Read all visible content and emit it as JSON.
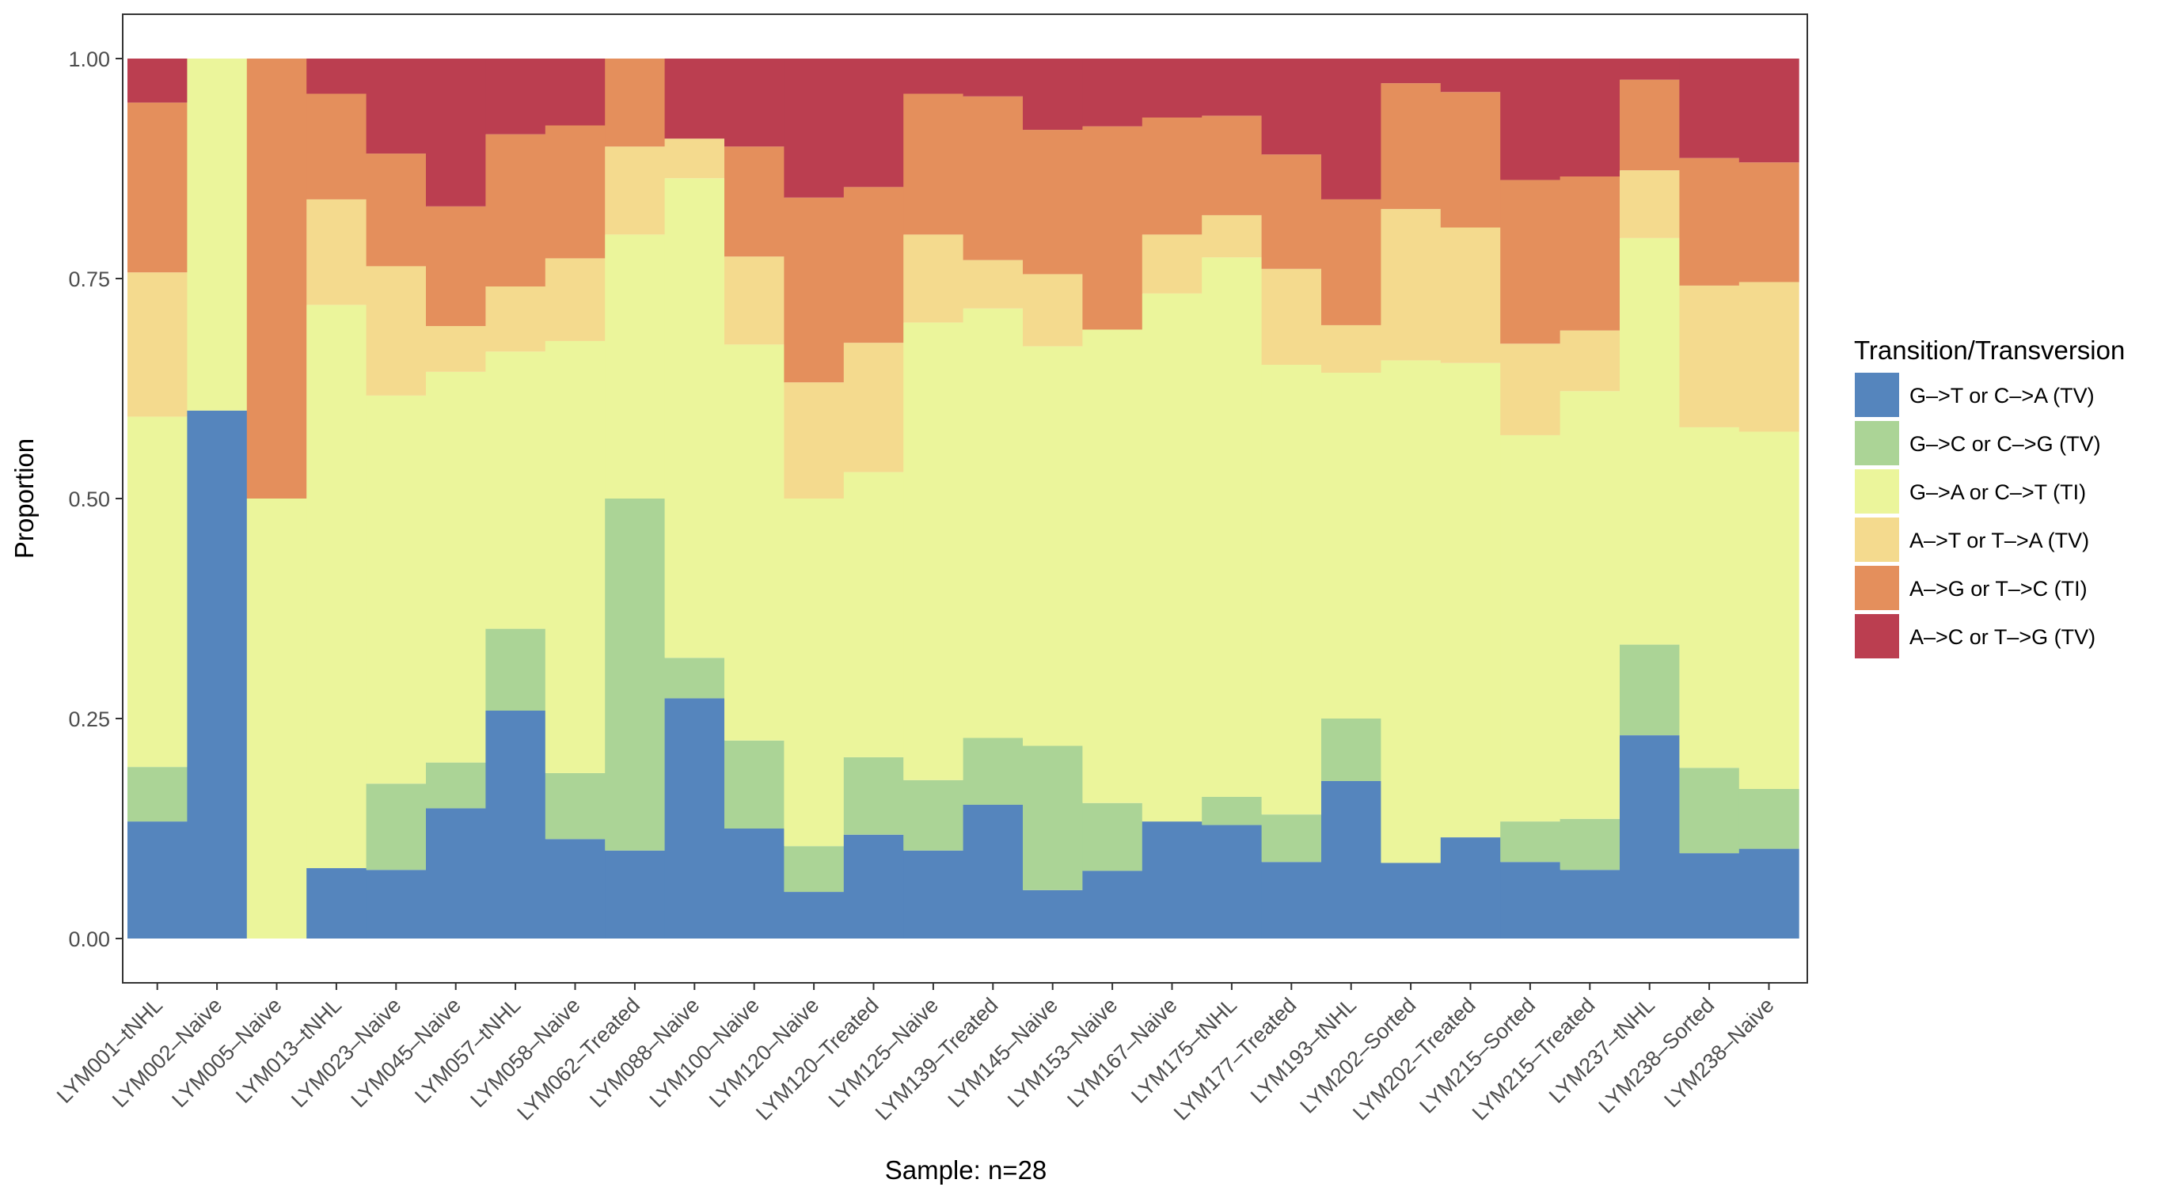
{
  "chart_data": {
    "type": "bar",
    "stacked": true,
    "normalized": true,
    "xlabel": "Sample: n=28",
    "ylabel": "Proportion",
    "ylim": [
      0,
      1
    ],
    "yticks": [
      "0.00",
      "0.25",
      "0.50",
      "0.75",
      "1.00"
    ],
    "grid": false,
    "legend_position": "right",
    "legend_title": "Transition/Transversion",
    "categories": [
      "LYM001–tNHL",
      "LYM002–Naive",
      "LYM005–Naive",
      "LYM013–tNHL",
      "LYM023–Naive",
      "LYM045–Naive",
      "LYM057–tNHL",
      "LYM058–Naive",
      "LYM062–Treated",
      "LYM088–Naive",
      "LYM100–Naive",
      "LYM120–Naive",
      "LYM120–Treated",
      "LYM125–Naive",
      "LYM139–Treated",
      "LYM145–Naive",
      "LYM153–Naive",
      "LYM167–Naive",
      "LYM175–tNHL",
      "LYM177–Treated",
      "LYM193–tNHL",
      "LYM202–Sorted",
      "LYM202–Treated",
      "LYM215–Sorted",
      "LYM215–Treated",
      "LYM237–tNHL",
      "LYM238–Sorted",
      "LYM238–Naive"
    ],
    "series": [
      {
        "name": "G–>T or C–>A (TV)",
        "color": "#5585bd",
        "values": [
          0.133,
          0.6,
          0.0,
          0.08,
          0.078,
          0.148,
          0.259,
          0.113,
          0.1,
          0.273,
          0.125,
          0.053,
          0.118,
          0.1,
          0.152,
          0.055,
          0.077,
          0.133,
          0.129,
          0.087,
          0.179,
          0.086,
          0.115,
          0.087,
          0.078,
          0.231,
          0.097,
          0.102
        ]
      },
      {
        "name": "G–>C or C–>G (TV)",
        "color": "#abd496",
        "values": [
          0.062,
          0.0,
          0.0,
          0.0,
          0.098,
          0.052,
          0.093,
          0.075,
          0.4,
          0.046,
          0.1,
          0.052,
          0.088,
          0.08,
          0.076,
          0.164,
          0.077,
          0.0,
          0.032,
          0.054,
          0.071,
          0.0,
          0.0,
          0.046,
          0.058,
          0.103,
          0.097,
          0.068
        ]
      },
      {
        "name": "G–>A or C–>T (TI)",
        "color": "#ebf59b",
        "values": [
          0.398,
          0.4,
          0.5,
          0.64,
          0.441,
          0.444,
          0.315,
          0.491,
          0.3,
          0.545,
          0.45,
          0.395,
          0.324,
          0.52,
          0.488,
          0.454,
          0.538,
          0.6,
          0.613,
          0.511,
          0.393,
          0.571,
          0.539,
          0.439,
          0.486,
          0.462,
          0.387,
          0.406
        ]
      },
      {
        "name": "A–>T or T–>A (TV)",
        "color": "#f4da8e",
        "values": [
          0.164,
          0.0,
          0.0,
          0.12,
          0.147,
          0.052,
          0.074,
          0.094,
          0.1,
          0.045,
          0.1,
          0.132,
          0.147,
          0.1,
          0.055,
          0.082,
          0.0,
          0.067,
          0.048,
          0.109,
          0.054,
          0.172,
          0.154,
          0.104,
          0.069,
          0.077,
          0.161,
          0.17
        ]
      },
      {
        "name": "A–>G or T–>C (TI)",
        "color": "#e48f5c",
        "values": [
          0.193,
          0.0,
          0.5,
          0.12,
          0.128,
          0.136,
          0.173,
          0.151,
          0.1,
          0.0,
          0.125,
          0.21,
          0.177,
          0.16,
          0.186,
          0.164,
          0.231,
          0.133,
          0.113,
          0.13,
          0.143,
          0.143,
          0.154,
          0.186,
          0.175,
          0.103,
          0.145,
          0.136
        ]
      },
      {
        "name": "A–>C or T–>G (TV)",
        "color": "#bb3e50",
        "values": [
          0.05,
          0.0,
          0.0,
          0.04,
          0.108,
          0.168,
          0.086,
          0.076,
          0.0,
          0.091,
          0.1,
          0.158,
          0.146,
          0.04,
          0.043,
          0.081,
          0.077,
          0.067,
          0.065,
          0.109,
          0.16,
          0.028,
          0.038,
          0.138,
          0.134,
          0.024,
          0.113,
          0.118
        ]
      }
    ]
  }
}
